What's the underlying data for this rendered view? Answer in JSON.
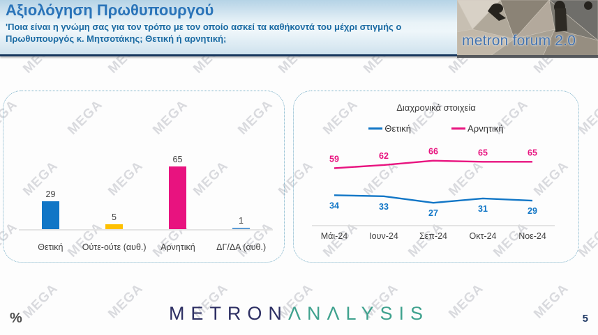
{
  "header": {
    "title": "Αξιολόγηση Πρωθυπουργού",
    "subtitle": "'Ποια είναι η γνώμη σας για τον τρόπο με τον οποίο ασκεί τα καθήκοντά του μέχρι στιγμής ο Πρωθυπουργός κ. Μητσοτάκης; Θετική ή αρνητική;",
    "logo_text": "metron forum 2.0"
  },
  "watermark": {
    "text": "MEGA"
  },
  "footer": {
    "percent_label": "%",
    "brand_metron": "METRON",
    "brand_analysis": "ΛNΛLYSIS",
    "page_number": "5"
  },
  "colors": {
    "positive_blue": "#1176c6",
    "negative_pink": "#e8137f",
    "neutral_yellow": "#fec001",
    "dk_da_lightblue": "#5b9bd5",
    "label_gray": "#404040",
    "axis_gray": "#dcdcdc",
    "panel_border": "#7ab0c8",
    "header_navy_rule": "#17365d"
  },
  "chart_data": [
    {
      "type": "bar",
      "title": "",
      "categories": [
        "Θετική",
        "Ούτε-ούτε (αυθ.)",
        "Αρνητική",
        "ΔΓ/ΔΑ (αυθ.)"
      ],
      "values": [
        29,
        5,
        65,
        1
      ],
      "bar_colors": [
        "#1176c6",
        "#fec001",
        "#e8137f",
        "#5b9bd5"
      ],
      "xlabel": "",
      "ylabel": "",
      "ylim": [
        0,
        100
      ],
      "grid": false,
      "data_labels": true
    },
    {
      "type": "line",
      "title": "Διαχρονικά στοιχεία",
      "categories": [
        "Μάι-24",
        "Ιουν-24",
        "Σεπ-24",
        "Οκτ-24",
        "Νοε-24"
      ],
      "series": [
        {
          "name": "Θετική",
          "color": "#1176c6",
          "values": [
            34,
            33,
            27,
            31,
            29
          ]
        },
        {
          "name": "Αρνητική",
          "color": "#e8137f",
          "values": [
            59,
            62,
            66,
            65,
            65
          ]
        }
      ],
      "xlabel": "",
      "ylabel": "",
      "ylim": [
        0,
        100
      ],
      "grid": false,
      "legend_position": "top",
      "data_labels": true
    }
  ]
}
